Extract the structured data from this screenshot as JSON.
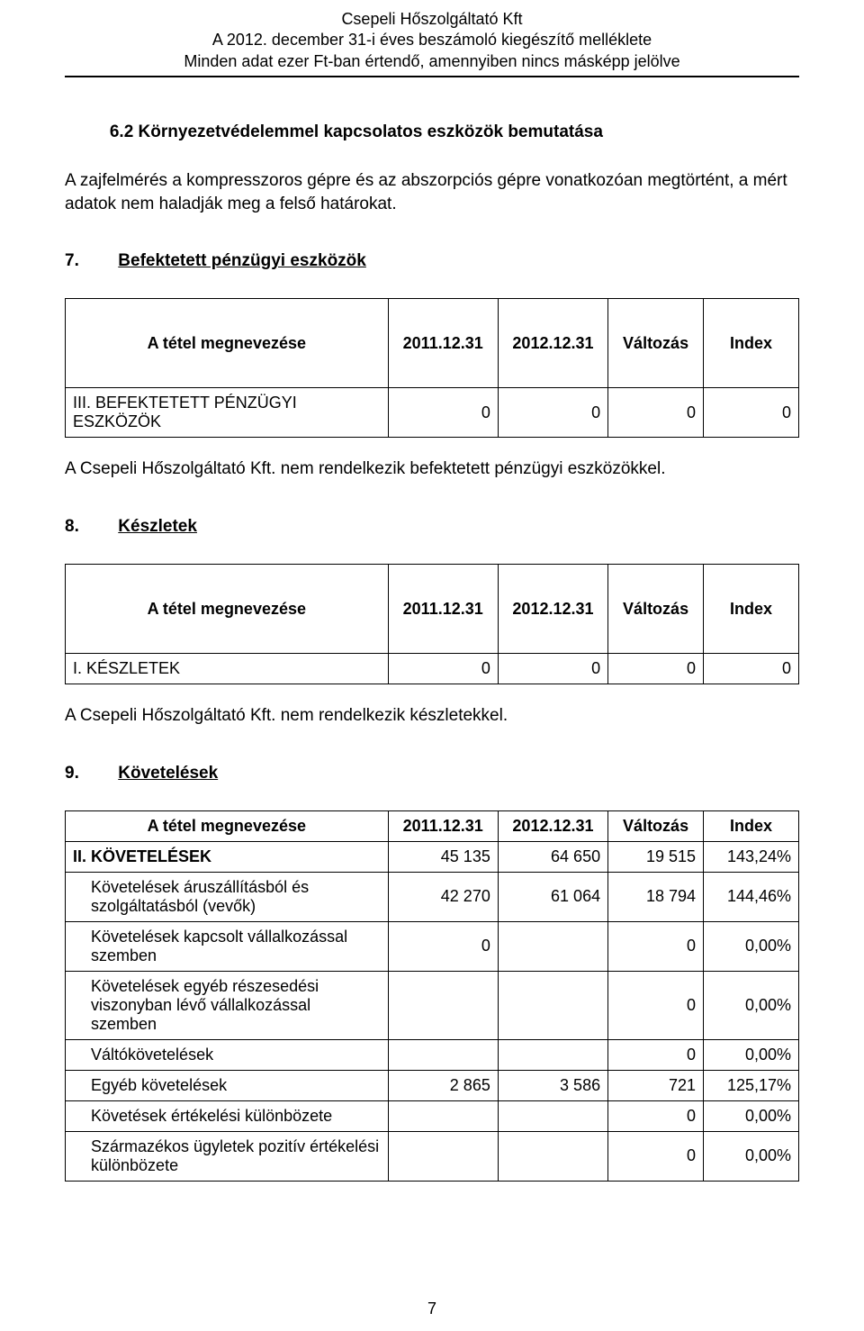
{
  "header": {
    "line1": "Csepeli Hőszolgáltató Kft",
    "line2": "A 2012. december 31-i éves beszámoló kiegészítő melléklete",
    "line3": "Minden adat ezer Ft-ban értendő, amennyiben nincs másképp jelölve"
  },
  "section62": {
    "number": "6.2",
    "title": "Környezetvédelemmel kapcsolatos eszközök bemutatása",
    "text": "A zajfelmérés a kompresszoros gépre és az abszorpciós gépre vonatkozóan megtörtént, a mért adatok nem haladják meg a felső határokat."
  },
  "section7": {
    "number": "7.",
    "title": "Befektetett pénzügyi eszközök",
    "table": {
      "col_widths": [
        "44%",
        "15%",
        "15%",
        "13%",
        "13%"
      ],
      "headers": [
        "A tétel megnevezése",
        "2011.12.31",
        "2012.12.31",
        "Változás",
        "Index"
      ],
      "rows": [
        {
          "label": "III. BEFEKTETETT PÉNZÜGYI ESZKÖZÖK",
          "v1": "0",
          "v2": "0",
          "v3": "0",
          "v4": "0"
        }
      ]
    },
    "after_text": "A Csepeli Hőszolgáltató Kft. nem rendelkezik befektetett pénzügyi eszközökkel."
  },
  "section8": {
    "number": "8.",
    "title": "Készletek",
    "table": {
      "col_widths": [
        "44%",
        "15%",
        "15%",
        "13%",
        "13%"
      ],
      "headers": [
        "A tétel megnevezése",
        "2011.12.31",
        "2012.12.31",
        "Változás",
        "Index"
      ],
      "rows": [
        {
          "label": "I. KÉSZLETEK",
          "v1": "0",
          "v2": "0",
          "v3": "0",
          "v4": "0"
        }
      ]
    },
    "after_text": "A Csepeli Hőszolgáltató Kft. nem rendelkezik készletekkel."
  },
  "section9": {
    "number": "9.",
    "title": "Követelések",
    "table": {
      "col_widths": [
        "44%",
        "15%",
        "15%",
        "13%",
        "13%"
      ],
      "headers": [
        "A tétel megnevezése",
        "2011.12.31",
        "2012.12.31",
        "Változás",
        "Index"
      ],
      "rows": [
        {
          "label": "II. KÖVETELÉSEK",
          "bold": true,
          "indent": false,
          "v1": "45 135",
          "v2": "64 650",
          "v3": "19 515",
          "v4": "143,24%"
        },
        {
          "label": "Követelések áruszállításból és szolgáltatásból (vevők)",
          "bold": false,
          "indent": true,
          "v1": "42 270",
          "v2": "61 064",
          "v3": "18 794",
          "v4": "144,46%"
        },
        {
          "label": "Követelések kapcsolt vállalkozással szemben",
          "bold": false,
          "indent": true,
          "v1": "0",
          "v2": "",
          "v3": "0",
          "v4": "0,00%"
        },
        {
          "label": "Követelések egyéb részesedési viszonyban lévő vállalkozással szemben",
          "bold": false,
          "indent": true,
          "v1": "",
          "v2": "",
          "v3": "0",
          "v4": "0,00%"
        },
        {
          "label": "Váltókövetelések",
          "bold": false,
          "indent": true,
          "v1": "",
          "v2": "",
          "v3": "0",
          "v4": "0,00%"
        },
        {
          "label": "Egyéb követelések",
          "bold": false,
          "indent": true,
          "v1": "2 865",
          "v2": "3 586",
          "v3": "721",
          "v4": "125,17%"
        },
        {
          "label": "Követések értékelési különbözete",
          "bold": false,
          "indent": true,
          "v1": "",
          "v2": "",
          "v3": "0",
          "v4": "0,00%"
        },
        {
          "label": "Származékos ügyletek pozitív értékelési különbözete",
          "bold": false,
          "indent": true,
          "v1": "",
          "v2": "",
          "v3": "0",
          "v4": "0,00%"
        }
      ]
    }
  },
  "page_number": "7",
  "colors": {
    "text": "#000000",
    "background": "#ffffff",
    "border": "#000000"
  }
}
